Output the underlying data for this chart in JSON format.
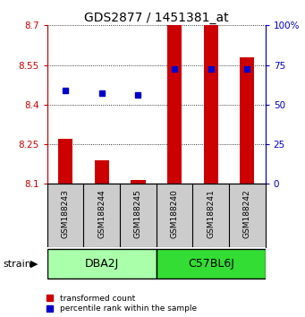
{
  "title": "GDS2877 / 1451381_at",
  "samples": [
    "GSM188243",
    "GSM188244",
    "GSM188245",
    "GSM188240",
    "GSM188241",
    "GSM188242"
  ],
  "groups": [
    "DBA2J",
    "DBA2J",
    "DBA2J",
    "C57BL6J",
    "C57BL6J",
    "C57BL6J"
  ],
  "group_names": [
    "DBA2J",
    "C57BL6J"
  ],
  "group_colors_dba": "#AAFFAA",
  "group_colors_c57": "#33DD33",
  "red_bar_bottom": 8.1,
  "red_bar_top": [
    8.27,
    8.19,
    8.115,
    8.7,
    8.7,
    8.58
  ],
  "blue_dot_y": [
    8.455,
    8.445,
    8.435,
    8.535,
    8.535,
    8.535
  ],
  "ylim": [
    8.1,
    8.7
  ],
  "yticks": [
    8.1,
    8.25,
    8.4,
    8.55,
    8.7
  ],
  "y2ticks": [
    0,
    25,
    50,
    75,
    100
  ],
  "y2labels": [
    "0",
    "25",
    "50",
    "75",
    "100%"
  ],
  "bar_color": "#CC0000",
  "dot_color": "#0000CC",
  "background_color": "#FFFFFF",
  "strain_label": "strain",
  "legend_red": "transformed count",
  "legend_blue": "percentile rank within the sample",
  "title_fontsize": 10,
  "tick_fontsize": 7.5,
  "sample_fontsize": 6.5,
  "group_fontsize": 9,
  "legend_fontsize": 6.5
}
